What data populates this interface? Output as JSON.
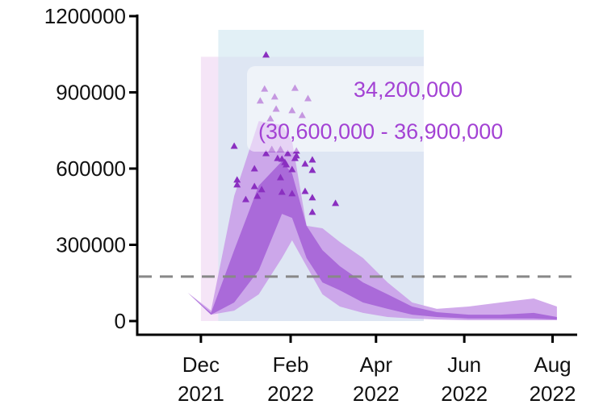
{
  "chart_data": {
    "type": "area",
    "title": "",
    "xlabel": "",
    "ylabel": "",
    "xlim": [
      "2021-10-18",
      "2022-08-18"
    ],
    "ylim": [
      -54000,
      1200000
    ],
    "grid": false,
    "y_ticks": [
      0,
      300000,
      600000,
      900000,
      1200000
    ],
    "y_tick_labels": [
      "0",
      "300000",
      "600000",
      "900000",
      "1200000"
    ],
    "x_ticks": [
      "2021-12-01",
      "2022-02-01",
      "2022-04-01",
      "2022-06-01",
      "2022-08-01"
    ],
    "x_tick_labels": [
      [
        "Dec",
        "2021"
      ],
      [
        "Feb",
        "2022"
      ],
      [
        "Apr",
        "2022"
      ],
      [
        "Jun",
        "2022"
      ],
      [
        "Aug",
        "2022"
      ]
    ],
    "bands": {
      "dates": [
        "2021-11-22",
        "2021-12-08",
        "2021-12-24",
        "2022-01-10",
        "2022-01-26",
        "2022-02-02",
        "2022-02-12",
        "2022-02-23",
        "2022-03-07",
        "2022-03-23",
        "2022-04-09",
        "2022-04-26",
        "2022-05-13",
        "2022-06-04",
        "2022-06-26",
        "2022-07-19",
        "2022-08-04"
      ],
      "upper_outer": [
        111000,
        41000,
        492000,
        787000,
        772000,
        708000,
        375000,
        365000,
        311000,
        248000,
        152000,
        73000,
        48000,
        57000,
        73000,
        89000,
        57000
      ],
      "upper_inner": [
        111000,
        32000,
        279000,
        533000,
        629000,
        581000,
        375000,
        279000,
        216000,
        152000,
        105000,
        57000,
        35000,
        25000,
        25000,
        32000,
        16000
      ],
      "lower_inner": [
        111000,
        25000,
        73000,
        200000,
        422000,
        406000,
        248000,
        152000,
        121000,
        73000,
        48000,
        25000,
        16000,
        10000,
        10000,
        10000,
        6000
      ],
      "lower_outer": [
        111000,
        25000,
        41000,
        105000,
        248000,
        318000,
        216000,
        105000,
        57000,
        32000,
        16000,
        10000,
        6000,
        3000,
        3000,
        3000,
        3000
      ]
    },
    "observed": [
      [
        "2022-01-15",
        1048000
      ],
      [
        "2022-01-14",
        914000
      ],
      [
        "2022-02-04",
        917000
      ],
      [
        "2022-01-21",
        883000
      ],
      [
        "2022-01-11",
        867000
      ],
      [
        "2022-02-13",
        876000
      ],
      [
        "2022-01-22",
        835000
      ],
      [
        "2022-02-02",
        829000
      ],
      [
        "2022-02-09",
        810000
      ],
      [
        "2022-01-18",
        797000
      ],
      [
        "2021-12-24",
        689000
      ],
      [
        "2021-12-26",
        556000
      ],
      [
        "2021-12-26",
        537000
      ],
      [
        "2022-01-01",
        479000
      ],
      [
        "2022-01-07",
        600000
      ],
      [
        "2022-01-07",
        530000
      ],
      [
        "2022-01-09",
        492000
      ],
      [
        "2022-01-12",
        518000
      ],
      [
        "2022-01-15",
        660000
      ],
      [
        "2022-01-23",
        641000
      ],
      [
        "2022-01-25",
        565000
      ],
      [
        "2022-01-26",
        638000
      ],
      [
        "2022-01-28",
        625000
      ],
      [
        "2022-01-29",
        616000
      ],
      [
        "2022-02-02",
        597000
      ],
      [
        "2022-01-26",
        508000
      ],
      [
        "2022-02-02",
        502000
      ],
      [
        "2022-02-04",
        641000
      ],
      [
        "2022-02-05",
        651000
      ],
      [
        "2022-02-11",
        619000
      ],
      [
        "2022-02-11",
        511000
      ],
      [
        "2022-02-16",
        635000
      ],
      [
        "2022-02-16",
        594000
      ],
      [
        "2022-02-16",
        486000
      ],
      [
        "2022-02-16",
        429000
      ],
      [
        "2022-03-04",
        464000
      ],
      [
        "2022-01-19",
        676000
      ],
      [
        "2022-01-25",
        676000
      ],
      [
        "2022-01-30",
        660000
      ],
      [
        "2022-02-05",
        670000
      ]
    ],
    "threshold": 175000,
    "shaded_periods": [
      {
        "start": "2021-12-01",
        "end": "2022-05-04",
        "top": 1040000,
        "color": "#f3def5"
      },
      {
        "start": "2021-12-13",
        "end": "2022-05-04",
        "top": 1146000,
        "color": "#cfe6f0"
      }
    ],
    "annotation": {
      "value": "34,200,000",
      "range": "(30,600,000 - 36,900,000"
    },
    "colors": {
      "outer": "#c99be8",
      "inner": "#a35fd6",
      "observed": "#8a2fc0",
      "threshold": "#888888"
    }
  }
}
